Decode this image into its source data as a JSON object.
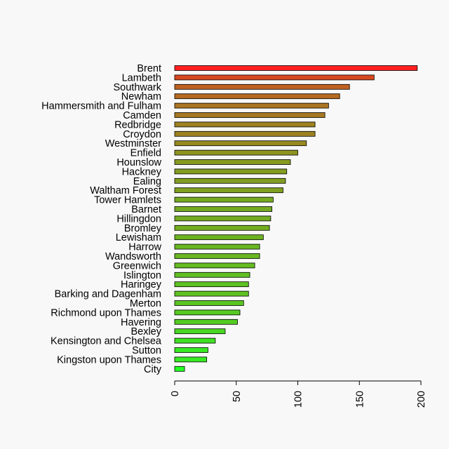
{
  "chart_data": {
    "type": "bar",
    "orientation": "horizontal",
    "categories": [
      "Brent",
      "Lambeth",
      "Southwark",
      "Newham",
      "Hammersmith and Fulham",
      "Camden",
      "Redbridge",
      "Croydon",
      "Westminster",
      "Enfield",
      "Hounslow",
      "Hackney",
      "Ealing",
      "Waltham Forest",
      "Tower Hamlets",
      "Barnet",
      "Hillingdon",
      "Bromley",
      "Lewisham",
      "Harrow",
      "Wandsworth",
      "Greenwich",
      "Islington",
      "Haringey",
      "Barking and Dagenham",
      "Merton",
      "Richmond upon Thames",
      "Havering",
      "Bexley",
      "Kensington and Chelsea",
      "Sutton",
      "Kingston upon Thames",
      "City"
    ],
    "values": [
      197,
      162,
      142,
      134,
      125,
      122,
      114,
      114,
      107,
      100,
      94,
      91,
      90,
      88,
      80,
      79,
      78,
      77,
      72,
      69,
      69,
      65,
      61,
      60,
      60,
      56,
      53,
      51,
      41,
      33,
      27,
      26,
      8
    ],
    "xlim": [
      0,
      200
    ],
    "xticks": [
      "0",
      "50",
      "100",
      "150",
      "200"
    ],
    "colors": {
      "high": "#ff2020",
      "low": "#22ff22",
      "bar_border": "#000000",
      "background": "#f8f8f8"
    },
    "grid": false,
    "legend": "none"
  }
}
